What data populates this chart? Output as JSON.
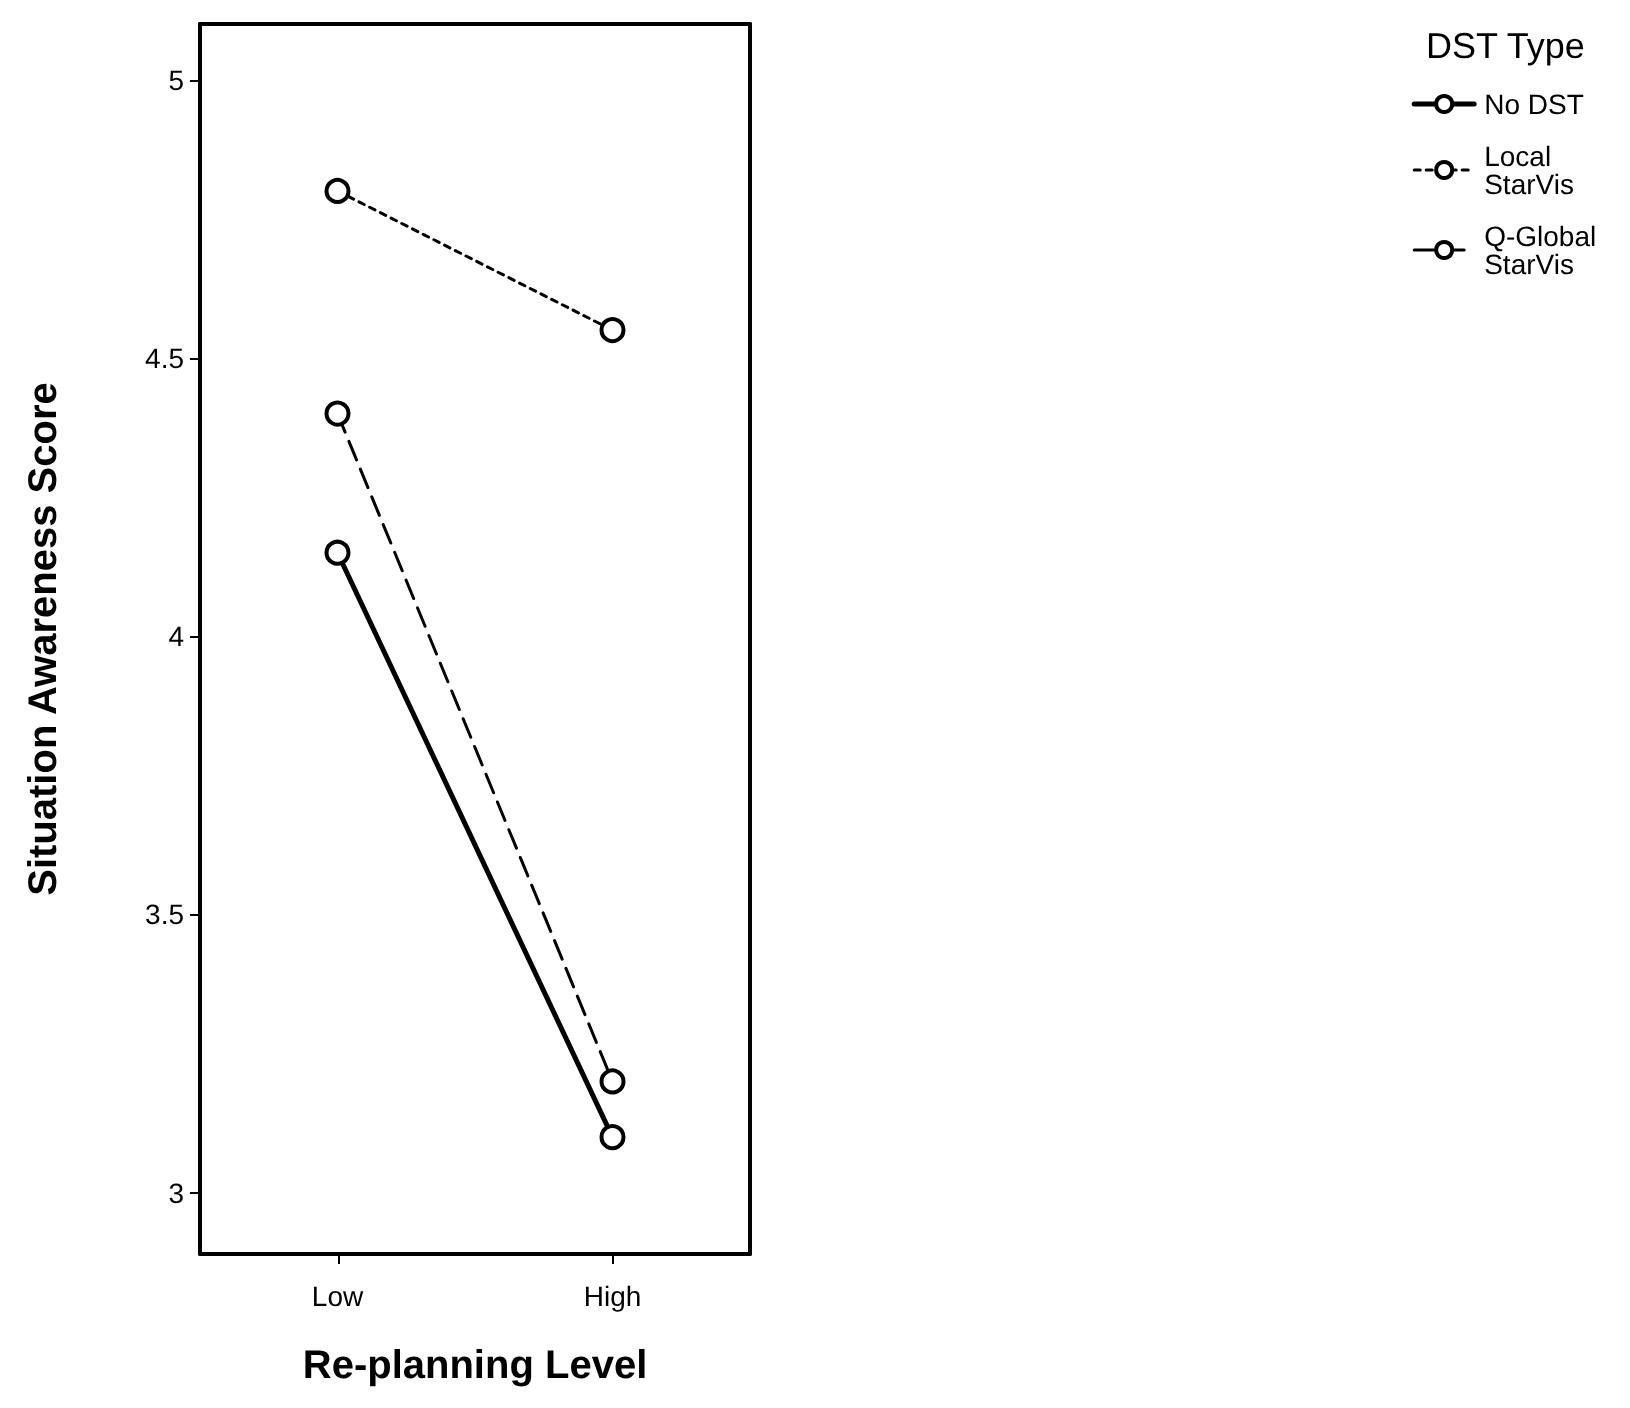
{
  "chart_data": {
    "type": "line",
    "xlabel": "Re-planning Level",
    "ylabel": "Situation Awareness Score",
    "legend_title": "DST Type",
    "categories": [
      "Low",
      "High"
    ],
    "series": [
      {
        "name": "No DST",
        "color": "#000000",
        "values": [
          4.15,
          3.1
        ],
        "line_style": "solid"
      },
      {
        "name": "Local StarVis",
        "color": "#000000",
        "values": [
          4.8,
          4.55
        ],
        "line_style": "dotted"
      },
      {
        "name": "Q-Global StarVis",
        "color": "#000000",
        "values": [
          4.4,
          3.2
        ],
        "line_style": "dashed"
      }
    ],
    "ylim": [
      2.89,
      5.1
    ],
    "yticks": [
      3,
      3.5,
      4,
      4.5,
      5
    ],
    "grid": false,
    "legend": "top right",
    "marker": "circle"
  }
}
